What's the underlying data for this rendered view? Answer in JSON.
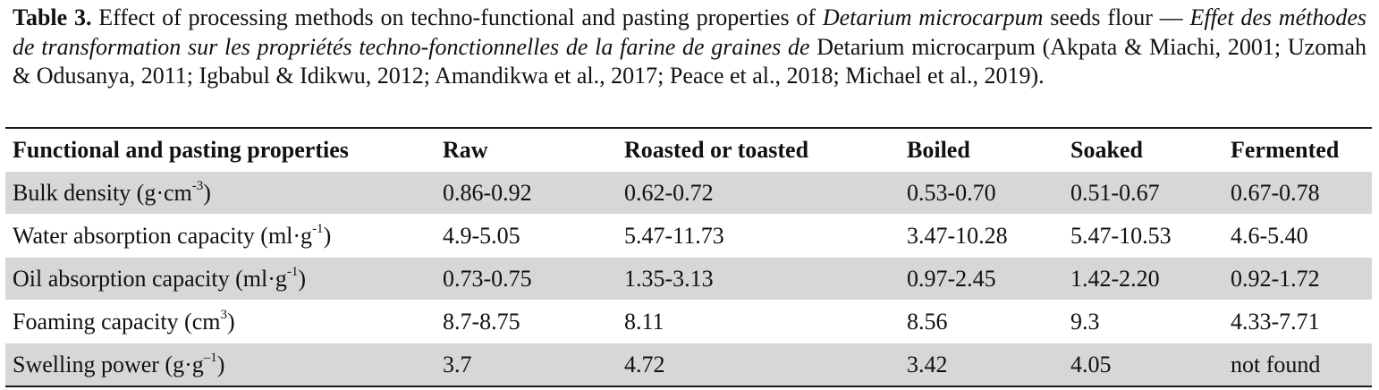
{
  "caption": {
    "label": "Table 3.",
    "text_1": " Effect of processing methods on techno-functional and pasting properties of ",
    "italic_species": "Detarium microcarpum",
    "text_2": " seeds flour — ",
    "italic_fr": "Effet des méthodes de transformation sur les propriétés techno-fonctionnelles de la farine de graines de",
    "text_3": " Detarium microcarpum (Akpata & Miachi, 2001; Uzomah & Odusanya, 2011; Igbabul & Idikwu, 2012; Amandikwa et al., 2017; Peace et al., 2018; Michael et al., 2019)."
  },
  "table": {
    "headers": [
      "Functional and pasting properties",
      "Raw",
      "Roasted or toasted",
      "Boiled",
      "Soaked",
      "Fermented"
    ],
    "rows": [
      {
        "prop": "Bulk density (g·cm",
        "sup": "-3",
        "close": ")",
        "values": [
          "0.86-0.92",
          "0.62-0.72",
          "0.53-0.70",
          "0.51-0.67",
          "0.67-0.78"
        ]
      },
      {
        "prop": "Water absorption capacity (ml·g",
        "sup": "-1",
        "close": ")",
        "values": [
          "4.9-5.05",
          "5.47-11.73",
          "3.47-10.28",
          "5.47-10.53",
          "4.6-5.40"
        ]
      },
      {
        "prop": "Oil absorption capacity (ml·g",
        "sup": "-1",
        "close": ")",
        "values": [
          "0.73-0.75",
          "1.35-3.13",
          "0.97-2.45",
          "1.42-2.20",
          "0.92-1.72"
        ]
      },
      {
        "prop": "Foaming capacity (cm",
        "sup": "3",
        "close": ")",
        "values": [
          "8.7-8.75",
          "8.11",
          "8.56",
          "9.3",
          "4.33-7.71"
        ]
      },
      {
        "prop": "Swelling power (g·g",
        "sup": "–1",
        "close": ")",
        "values": [
          "3.7",
          "4.72",
          "3.42",
          "4.05",
          "not found"
        ]
      }
    ]
  }
}
